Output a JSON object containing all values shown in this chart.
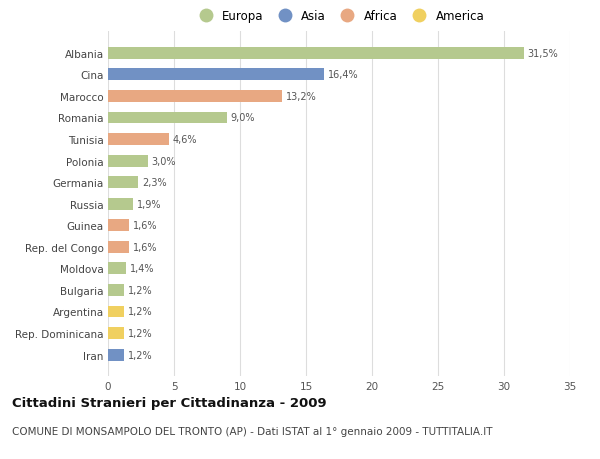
{
  "countries": [
    "Albania",
    "Cina",
    "Marocco",
    "Romania",
    "Tunisia",
    "Polonia",
    "Germania",
    "Russia",
    "Guinea",
    "Rep. del Congo",
    "Moldova",
    "Bulgaria",
    "Argentina",
    "Rep. Dominicana",
    "Iran"
  ],
  "values": [
    31.5,
    16.4,
    13.2,
    9.0,
    4.6,
    3.0,
    2.3,
    1.9,
    1.6,
    1.6,
    1.4,
    1.2,
    1.2,
    1.2,
    1.2
  ],
  "labels": [
    "31,5%",
    "16,4%",
    "13,2%",
    "9,0%",
    "4,6%",
    "3,0%",
    "2,3%",
    "1,9%",
    "1,6%",
    "1,6%",
    "1,4%",
    "1,2%",
    "1,2%",
    "1,2%",
    "1,2%"
  ],
  "continents": [
    "Europa",
    "Asia",
    "Africa",
    "Europa",
    "Africa",
    "Europa",
    "Europa",
    "Europa",
    "Africa",
    "Africa",
    "Europa",
    "Europa",
    "America",
    "America",
    "Asia"
  ],
  "continent_colors": {
    "Europa": "#b5c98e",
    "Asia": "#7191c4",
    "Africa": "#e8a882",
    "America": "#f0d060"
  },
  "legend_order": [
    "Europa",
    "Asia",
    "Africa",
    "America"
  ],
  "legend_colors": [
    "#b5c98e",
    "#7191c4",
    "#e8a882",
    "#f0d060"
  ],
  "xlim": [
    0,
    35
  ],
  "xticks": [
    0,
    5,
    10,
    15,
    20,
    25,
    30,
    35
  ],
  "bg_color": "#ffffff",
  "grid_color": "#dddddd",
  "title": "Cittadini Stranieri per Cittadinanza - 2009",
  "subtitle": "COMUNE DI MONSAMPOLO DEL TRONTO (AP) - Dati ISTAT al 1° gennaio 2009 - TUTTITALIA.IT",
  "title_fontsize": 9.5,
  "subtitle_fontsize": 7.5,
  "bar_height": 0.55
}
